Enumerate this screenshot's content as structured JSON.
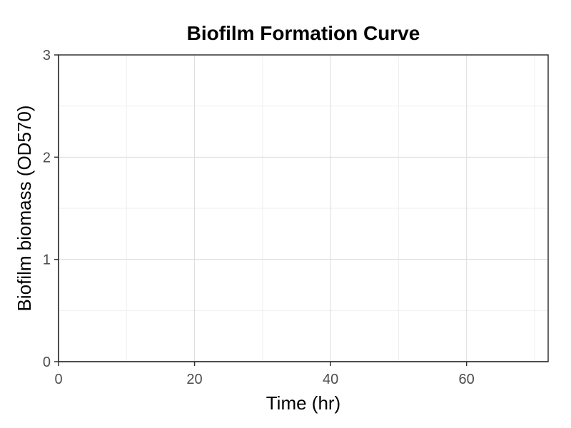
{
  "chart_data": {
    "type": "line",
    "title": "Biofilm Formation Curve",
    "xlabel": "Time (hr)",
    "ylabel": "Biofilm biomass (OD570)",
    "xlim": [
      0,
      72
    ],
    "ylim": [
      0,
      3
    ],
    "x_ticks": [
      0,
      20,
      40,
      60
    ],
    "y_ticks": [
      0,
      1,
      2,
      3
    ],
    "x_minor_ticks": [
      10,
      30,
      50,
      70
    ],
    "y_minor_ticks": [
      0.5,
      1.5,
      2.5
    ],
    "grid": true,
    "series": [],
    "colors": {
      "grid_major": "#dcdcdc",
      "grid_minor": "#efefef",
      "axis": "#333333",
      "tick_text": "#4d4d4d"
    }
  }
}
